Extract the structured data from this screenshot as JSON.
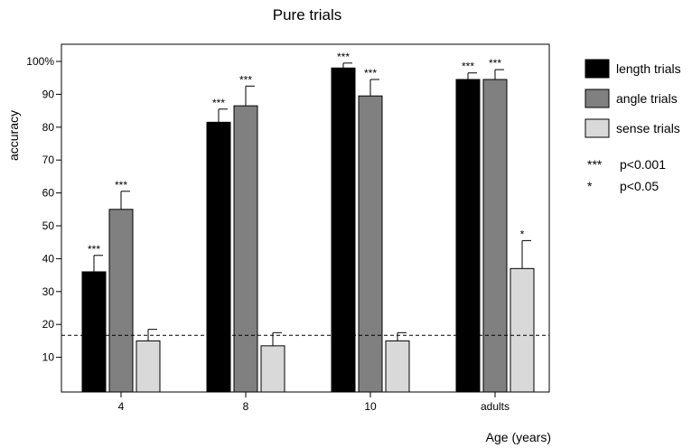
{
  "chart_data": {
    "type": "bar",
    "title": "Pure trials",
    "xlabel": "Age (years)",
    "ylabel": "accuracy",
    "ylim": [
      0,
      100
    ],
    "yticks": [
      10,
      20,
      30,
      40,
      50,
      60,
      70,
      80,
      90,
      100
    ],
    "ytick_labels": [
      "10",
      "20",
      "30",
      "40",
      "50",
      "60",
      "70",
      "80",
      "90",
      "100%"
    ],
    "categories": [
      "4",
      "8",
      "10",
      "adults"
    ],
    "chance_level": 16.7,
    "grid": false,
    "legend_position": "right",
    "series": [
      {
        "name": "length trials",
        "color": "#000000",
        "values": [
          36,
          81.5,
          98,
          94.5
        ],
        "errors": [
          5,
          4,
          1.5,
          2
        ],
        "significance": [
          "***",
          "***",
          "***",
          "***"
        ]
      },
      {
        "name": "angle trials",
        "color": "#808080",
        "values": [
          55,
          86.5,
          89.5,
          94.5
        ],
        "errors": [
          5.5,
          6,
          5,
          3
        ],
        "significance": [
          "***",
          "***",
          "***",
          "***"
        ]
      },
      {
        "name": "sense trials",
        "color": "#d9d9d9",
        "values": [
          15,
          13.5,
          15,
          37
        ],
        "errors": [
          3.5,
          4,
          2.5,
          8.5
        ],
        "significance": [
          "",
          "",
          "",
          "*"
        ]
      }
    ],
    "significance_legend": [
      {
        "symbol": "***",
        "label": "p<0.001"
      },
      {
        "symbol": "*",
        "label": "p<0.05"
      }
    ]
  }
}
